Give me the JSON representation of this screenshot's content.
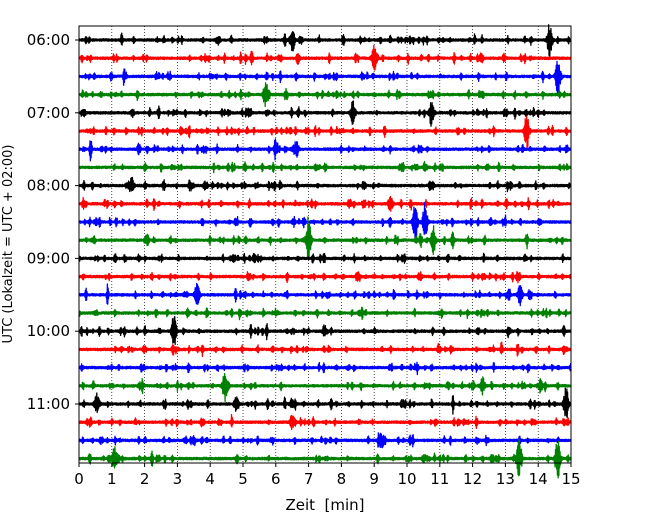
{
  "chart_data": {
    "type": "line",
    "xlabel": "Zeit  [min]",
    "ylabel": "UTC (Lokalzeit = UTC + 02:00)",
    "xlim": [
      0,
      15
    ],
    "x_ticks": [
      "0",
      "1",
      "2",
      "3",
      "4",
      "5",
      "6",
      "7",
      "8",
      "9",
      "10",
      "11",
      "12",
      "13",
      "14",
      "15"
    ],
    "y_ticks": [
      "06:00",
      "07:00",
      "08:00",
      "09:00",
      "10:00",
      "11:00"
    ],
    "grid": "vertical-dotted",
    "trace_interval_minutes": 15,
    "series_colors": [
      "#000000",
      "#ff0000",
      "#0000ff",
      "#008000"
    ],
    "rows": [
      {
        "start": "06:00",
        "color": "#000000",
        "events": [
          {
            "t": 6.5,
            "a": 0.5
          },
          {
            "t": 14.35,
            "a": 0.9
          }
        ]
      },
      {
        "start": "06:15",
        "color": "#ff0000",
        "events": [
          {
            "t": 9.0,
            "a": 0.6
          }
        ]
      },
      {
        "start": "06:30",
        "color": "#0000ff",
        "events": [
          {
            "t": 14.6,
            "a": 0.9
          }
        ]
      },
      {
        "start": "06:45",
        "color": "#008000",
        "events": [
          {
            "t": 5.7,
            "a": 0.6
          }
        ]
      },
      {
        "start": "07:00",
        "color": "#000000",
        "events": [
          {
            "t": 8.35,
            "a": 0.5
          },
          {
            "t": 10.75,
            "a": 0.6
          }
        ]
      },
      {
        "start": "07:15",
        "color": "#ff0000",
        "events": [
          {
            "t": 13.65,
            "a": 0.9
          }
        ]
      },
      {
        "start": "07:30",
        "color": "#0000ff",
        "events": [
          {
            "t": 6.6,
            "a": 0.4
          }
        ]
      },
      {
        "start": "07:45",
        "color": "#008000",
        "events": []
      },
      {
        "start": "08:00",
        "color": "#000000",
        "events": [
          {
            "t": 1.6,
            "a": 0.4
          }
        ]
      },
      {
        "start": "08:15",
        "color": "#ff0000",
        "events": [
          {
            "t": 9.5,
            "a": 0.4
          }
        ]
      },
      {
        "start": "08:30",
        "color": "#0000ff",
        "events": [
          {
            "t": 10.25,
            "a": 1.1
          },
          {
            "t": 10.55,
            "a": 1.0
          }
        ]
      },
      {
        "start": "08:45",
        "color": "#008000",
        "events": [
          {
            "t": 7.0,
            "a": 0.9
          },
          {
            "t": 10.8,
            "a": 0.7
          }
        ]
      },
      {
        "start": "09:00",
        "color": "#000000",
        "events": []
      },
      {
        "start": "09:15",
        "color": "#ff0000",
        "events": []
      },
      {
        "start": "09:30",
        "color": "#0000ff",
        "events": [
          {
            "t": 3.6,
            "a": 0.6
          },
          {
            "t": 13.45,
            "a": 0.5
          }
        ]
      },
      {
        "start": "09:45",
        "color": "#008000",
        "events": []
      },
      {
        "start": "10:00",
        "color": "#000000",
        "events": [
          {
            "t": 2.9,
            "a": 0.8
          }
        ]
      },
      {
        "start": "10:15",
        "color": "#ff0000",
        "events": []
      },
      {
        "start": "10:30",
        "color": "#0000ff",
        "events": []
      },
      {
        "start": "10:45",
        "color": "#008000",
        "events": [
          {
            "t": 4.45,
            "a": 0.8
          },
          {
            "t": 12.3,
            "a": 0.4
          }
        ]
      },
      {
        "start": "11:00",
        "color": "#000000",
        "events": [
          {
            "t": 0.55,
            "a": 0.5
          },
          {
            "t": 4.8,
            "a": 0.4
          },
          {
            "t": 14.85,
            "a": 0.9
          }
        ]
      },
      {
        "start": "11:15",
        "color": "#ff0000",
        "events": [
          {
            "t": 6.5,
            "a": 0.3
          }
        ]
      },
      {
        "start": "11:30",
        "color": "#0000ff",
        "events": [
          {
            "t": 9.2,
            "a": 0.3
          }
        ]
      },
      {
        "start": "11:45",
        "color": "#008000",
        "events": [
          {
            "t": 1.1,
            "a": 0.6
          },
          {
            "t": 13.4,
            "a": 0.8
          },
          {
            "t": 14.6,
            "a": 1.0
          }
        ]
      }
    ]
  }
}
